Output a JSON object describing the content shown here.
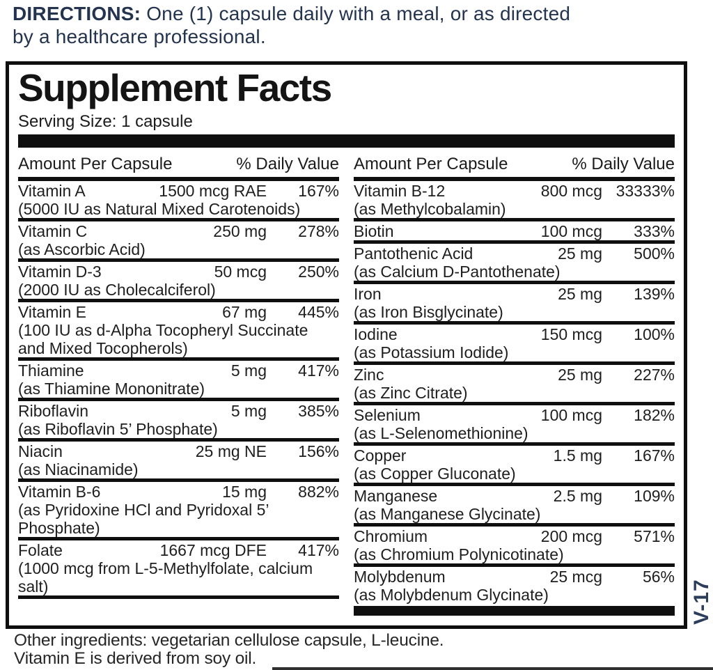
{
  "directions": {
    "label": "DIRECTIONS:",
    "line1": "One (1) capsule daily with a meal, or as directed",
    "line2": "by a healthcare professional."
  },
  "panel": {
    "title": "Supplement Facts",
    "serving_size": "Serving Size: 1 capsule",
    "header": {
      "amount": "Amount Per Capsule",
      "dv": "% Daily Value"
    },
    "left_rows": [
      {
        "name": "Vitamin A",
        "amount": "1500 mcg RAE",
        "dv": "167%",
        "note": "(5000 IU as Natural Mixed Carotenoids)"
      },
      {
        "name": "Vitamin C",
        "amount": "250 mg",
        "dv": "278%",
        "note": "(as Ascorbic Acid)"
      },
      {
        "name": "Vitamin D-3",
        "amount": "50 mcg",
        "dv": "250%",
        "note": "(2000 IU as Cholecalciferol)"
      },
      {
        "name": "Vitamin E",
        "amount": "67 mg",
        "dv": "445%",
        "note": "(100 IU as d-Alpha Tocopheryl Succinate and Mixed Tocopherols)"
      },
      {
        "name": "Thiamine",
        "amount": "5 mg",
        "dv": "417%",
        "note": "(as Thiamine Mononitrate)"
      },
      {
        "name": "Riboflavin",
        "amount": "5 mg",
        "dv": "385%",
        "note": "(as Riboflavin 5’ Phosphate)"
      },
      {
        "name": "Niacin",
        "amount": "25 mg NE",
        "dv": "156%",
        "note": "(as Niacinamide)"
      },
      {
        "name": "Vitamin B-6",
        "amount": "15 mg",
        "dv": "882%",
        "note": "(as Pyridoxine HCl and Pyridoxal 5’ Phosphate)"
      },
      {
        "name": "Folate",
        "amount": "1667 mcg DFE",
        "dv": "417%",
        "note": "(1000 mcg from L-5-Methylfolate, calcium salt)"
      }
    ],
    "right_rows": [
      {
        "name": "Vitamin B-12",
        "amount": "800 mcg",
        "dv": "33333%",
        "note": "(as Methylcobalamin)"
      },
      {
        "name": "Biotin",
        "amount": "100 mcg",
        "dv": "333%",
        "note": ""
      },
      {
        "name": "Pantothenic Acid",
        "amount": "25 mg",
        "dv": "500%",
        "note": "(as Calcium D-Pantothenate)"
      },
      {
        "name": "Iron",
        "amount": "25 mg",
        "dv": "139%",
        "note": "(as Iron Bisglycinate)"
      },
      {
        "name": "Iodine",
        "amount": "150 mcg",
        "dv": "100%",
        "note": "(as Potassium Iodide)"
      },
      {
        "name": "Zinc",
        "amount": "25 mg",
        "dv": "227%",
        "note": "(as Zinc Citrate)"
      },
      {
        "name": "Selenium",
        "amount": "100 mcg",
        "dv": "182%",
        "note": "(as L-Selenomethionine)"
      },
      {
        "name": "Copper",
        "amount": "1.5 mg",
        "dv": "167%",
        "note": "(as Copper Gluconate)"
      },
      {
        "name": "Manganese",
        "amount": "2.5 mg",
        "dv": "109%",
        "note": "(as Manganese Glycinate)"
      },
      {
        "name": "Chromium",
        "amount": "200 mcg",
        "dv": "571%",
        "note": "(as Chromium Polynicotinate)"
      },
      {
        "name": "Molybdenum",
        "amount": "25 mcg",
        "dv": "56%",
        "note": "(as Molybdenum Glycinate)"
      }
    ]
  },
  "footer": {
    "line1": "Other ingredients: vegetarian cellulose capsule, L-leucine.",
    "line2": "Vitamin E is derived from soy oil."
  },
  "side_code": "V-17",
  "colors": {
    "navy": "#24344f",
    "label_black": "#0f0f0f",
    "body_text": "#1e1e1e"
  }
}
